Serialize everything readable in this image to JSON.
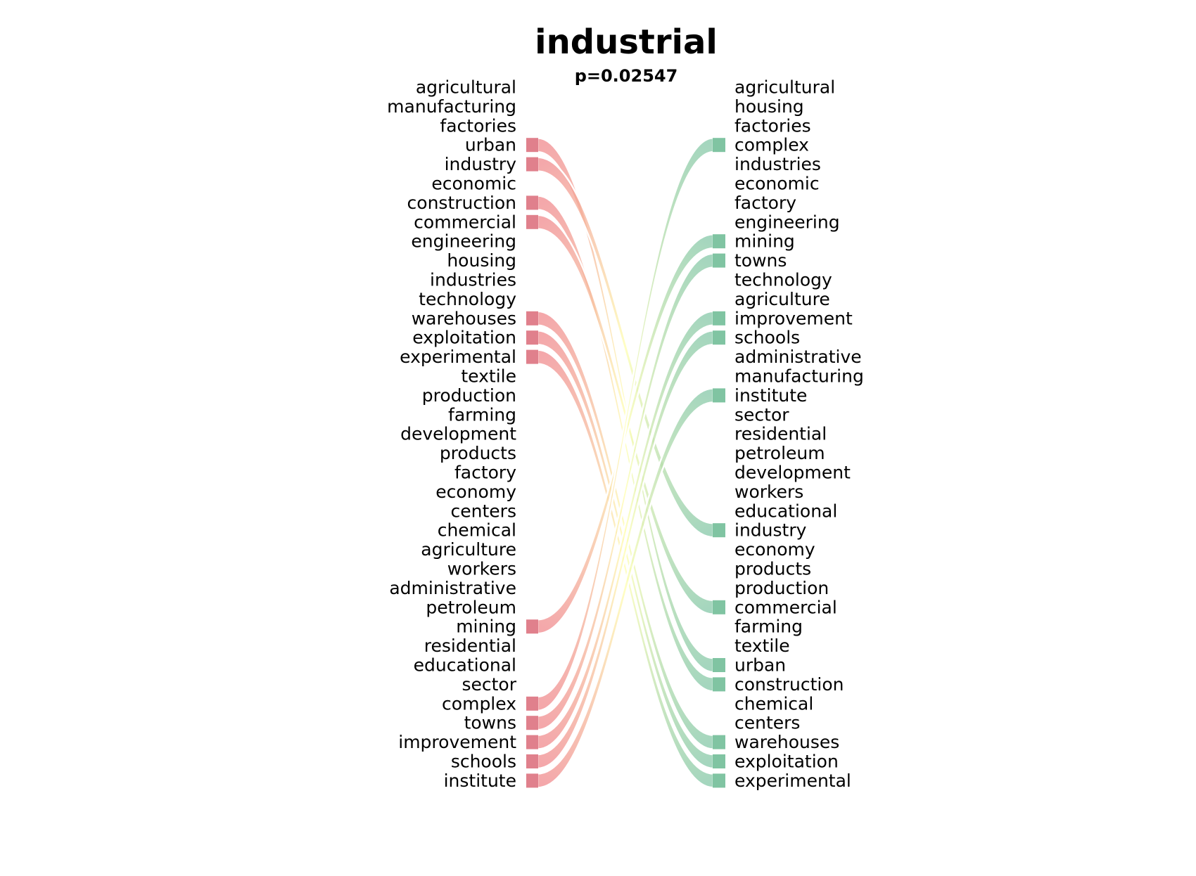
{
  "chart_data": {
    "type": "bump-chart",
    "title": "industrial",
    "subtitle": "p=0.02547",
    "left_ranking": [
      "agricultural",
      "manufacturing",
      "factories",
      "urban",
      "industry",
      "economic",
      "construction",
      "commercial",
      "engineering",
      "housing",
      "industries",
      "technology",
      "warehouses",
      "exploitation",
      "experimental",
      "textile",
      "production",
      "farming",
      "development",
      "products",
      "factory",
      "economy",
      "centers",
      "chemical",
      "agriculture",
      "workers",
      "administrative",
      "petroleum",
      "mining",
      "residential",
      "educational",
      "sector",
      "complex",
      "towns",
      "improvement",
      "schools",
      "institute"
    ],
    "right_ranking": [
      "agricultural",
      "housing",
      "factories",
      "complex",
      "industries",
      "economic",
      "factory",
      "engineering",
      "mining",
      "towns",
      "technology",
      "agriculture",
      "improvement",
      "schools",
      "administrative",
      "manufacturing",
      "institute",
      "sector",
      "residential",
      "petroleum",
      "development",
      "workers",
      "educational",
      "industry",
      "economy",
      "products",
      "production",
      "commercial",
      "farming",
      "textile",
      "urban",
      "construction",
      "chemical",
      "centers",
      "warehouses",
      "exploitation",
      "experimental"
    ],
    "links": [
      {
        "word": "urban",
        "from_rank": 4,
        "to_rank": 31
      },
      {
        "word": "industry",
        "from_rank": 5,
        "to_rank": 24
      },
      {
        "word": "construction",
        "from_rank": 7,
        "to_rank": 32
      },
      {
        "word": "commercial",
        "from_rank": 8,
        "to_rank": 28
      },
      {
        "word": "warehouses",
        "from_rank": 13,
        "to_rank": 35
      },
      {
        "word": "exploitation",
        "from_rank": 14,
        "to_rank": 36
      },
      {
        "word": "experimental",
        "from_rank": 15,
        "to_rank": 37
      },
      {
        "word": "mining",
        "from_rank": 29,
        "to_rank": 9
      },
      {
        "word": "complex",
        "from_rank": 33,
        "to_rank": 4
      },
      {
        "word": "towns",
        "from_rank": 34,
        "to_rank": 10
      },
      {
        "word": "improvement",
        "from_rank": 35,
        "to_rank": 13
      },
      {
        "word": "schools",
        "from_rank": 36,
        "to_rank": 14
      },
      {
        "word": "institute",
        "from_rank": 37,
        "to_rank": 17
      }
    ],
    "colors": {
      "left_marker": "#e0808c",
      "right_marker": "#80c4a2",
      "gradient_start": "#f08a8e",
      "gradient_mid": "#ffffb0",
      "gradient_end": "#86c8a8",
      "label": "#000000"
    }
  }
}
